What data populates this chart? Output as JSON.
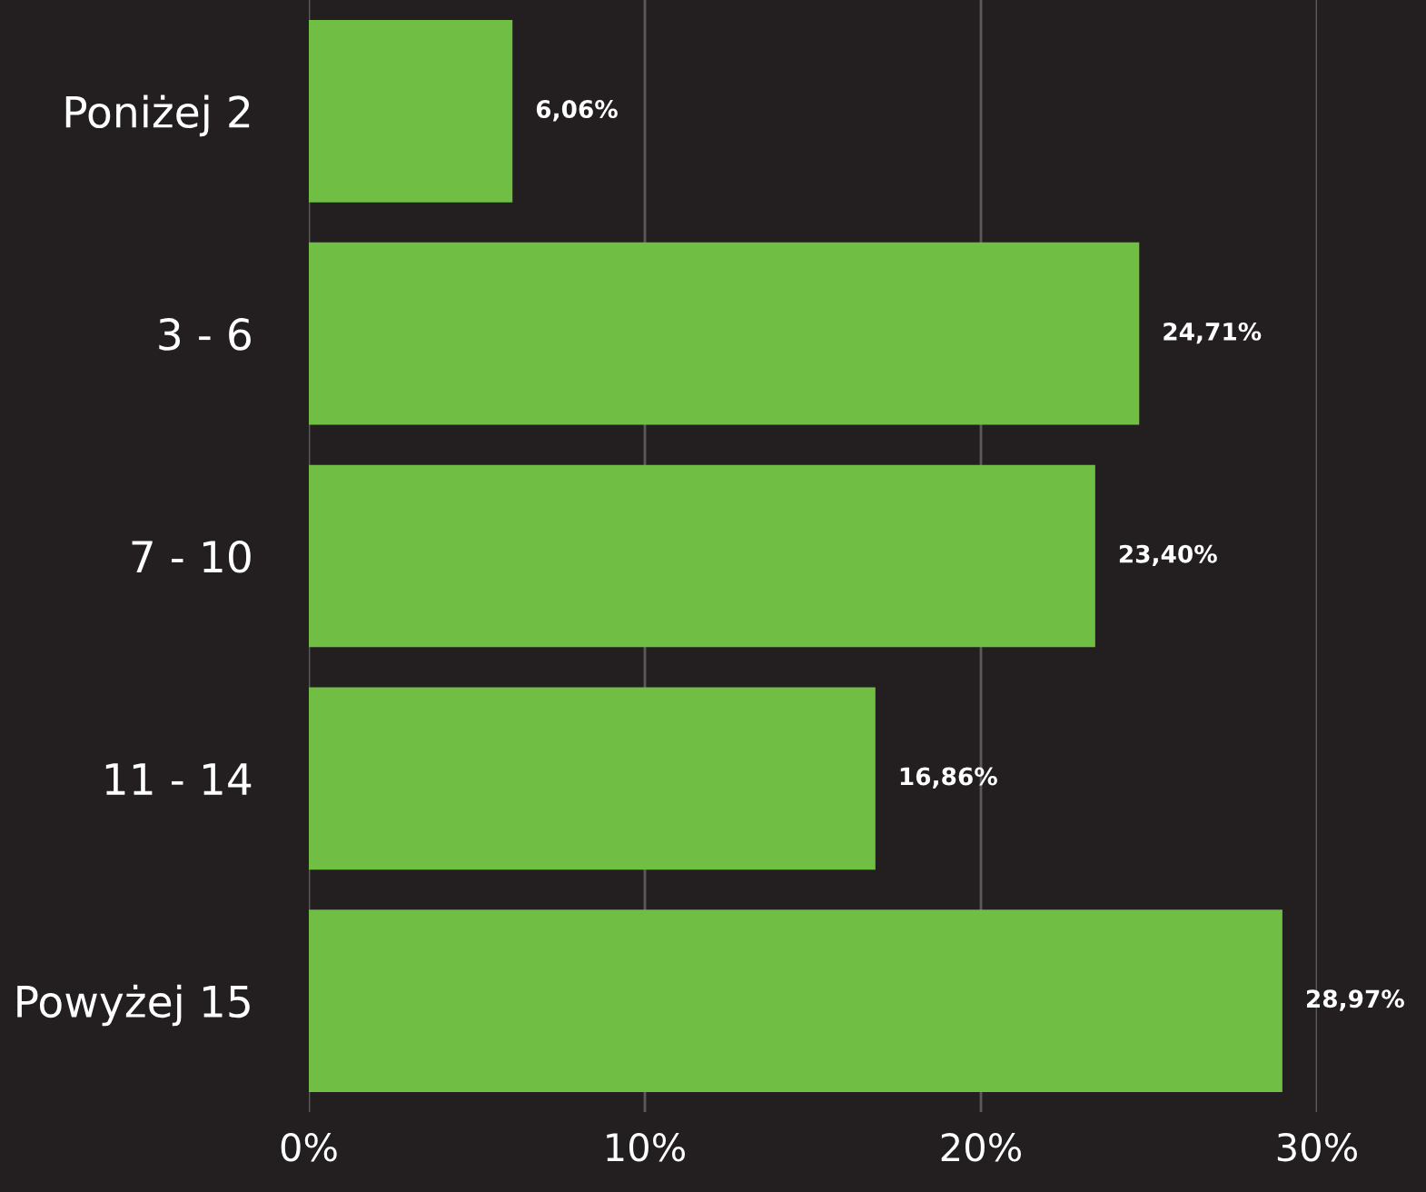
{
  "chart_data": {
    "type": "bar",
    "orientation": "horizontal",
    "categories": [
      "Poniżej 2",
      "3 - 6",
      "7 - 10",
      "11 - 14",
      "Powyżej 15"
    ],
    "values": [
      6.06,
      24.71,
      23.4,
      16.86,
      28.97
    ],
    "value_labels": [
      "6,06%",
      "24,71%",
      "23,40%",
      "16,86%",
      "28,97%"
    ],
    "color": "#70bf44",
    "xlim": [
      0,
      30
    ],
    "xticks": [
      {
        "value": 0,
        "label": "0%"
      },
      {
        "value": 10,
        "label": "10%"
      },
      {
        "value": 20,
        "label": "20%"
      },
      {
        "value": 30,
        "label": "30%"
      }
    ],
    "grid": "x"
  }
}
